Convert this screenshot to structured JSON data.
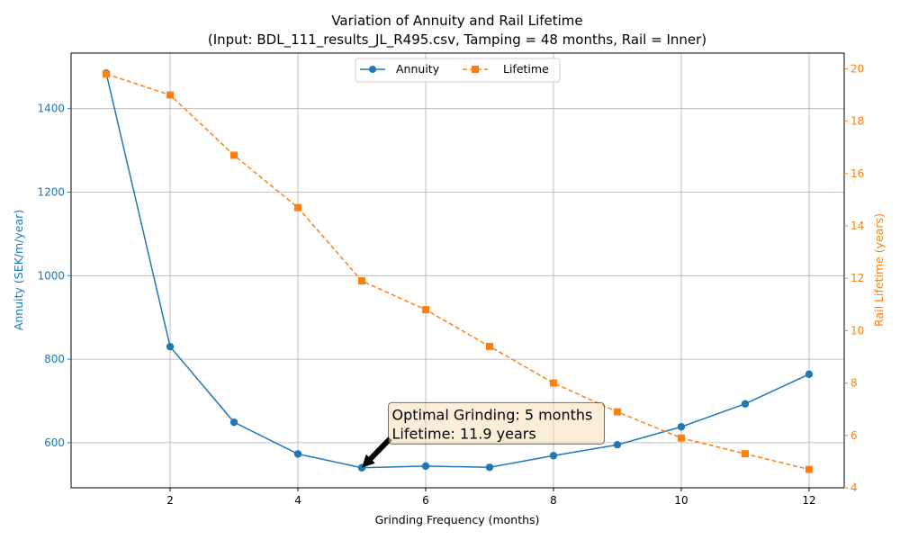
{
  "chart_data": {
    "type": "line",
    "title_line1": "Variation of Annuity and Rail Lifetime",
    "title_line2": "(Input: BDL_111_results_JL_R495.csv, Tamping = 48 months, Rail = Inner)",
    "xlabel": "Grinding Frequency (months)",
    "ylabel_left": "Annuity (SEK/m/year)",
    "ylabel_right": "Rail Lifetime (years)",
    "x": [
      1,
      2,
      3,
      4,
      5,
      6,
      7,
      8,
      9,
      10,
      11,
      12
    ],
    "xlim": [
      0.45,
      12.55
    ],
    "ylim_left": [
      492,
      1533
    ],
    "ylim_right": [
      4.0,
      20.6
    ],
    "x_ticks": [
      2,
      4,
      6,
      8,
      10,
      12
    ],
    "y_ticks_left": [
      600,
      800,
      1000,
      1200,
      1400
    ],
    "y_ticks_right": [
      4,
      6,
      8,
      10,
      12,
      14,
      16,
      18,
      20
    ],
    "grid": true,
    "legend_position": "top-center",
    "series": [
      {
        "name": "Annuity",
        "axis": "left",
        "color": "#1f77b4",
        "marker": "circle",
        "linestyle": "solid",
        "values": [
          1485,
          830,
          649,
          573,
          540,
          544,
          541,
          569,
          595,
          638,
          693,
          764
        ]
      },
      {
        "name": "Lifetime",
        "axis": "right",
        "color": "#ff7f0e",
        "marker": "square",
        "linestyle": "dashed",
        "values": [
          19.8,
          19.0,
          16.7,
          14.7,
          11.9,
          10.8,
          9.4,
          8.0,
          6.9,
          5.9,
          5.3,
          4.7
        ]
      }
    ],
    "annotation": {
      "line1": "Optimal Grinding: 5 months",
      "line2": "Lifetime: 11.9 years",
      "target_x": 5,
      "target_y": 540,
      "text_x": 5.5,
      "text_y": 640
    }
  }
}
